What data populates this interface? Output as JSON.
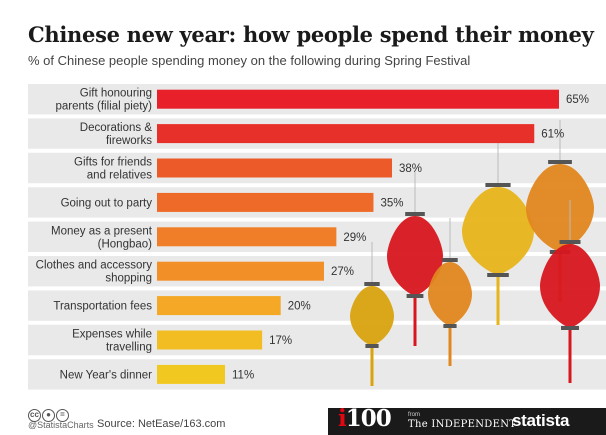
{
  "header": {
    "title": "Chinese new year: how people spend their money",
    "subtitle": "% of Chinese people spending money on the following during Spring Festival"
  },
  "chart_data": {
    "type": "bar",
    "orientation": "horizontal",
    "title": "Chinese new year: how people spend their money",
    "subtitle": "% of Chinese people spending money on the following during Spring Festival",
    "categories": [
      [
        "Gift honouring",
        "parents (filial piety)"
      ],
      [
        "Decorations &",
        "fireworks"
      ],
      [
        "Gifts for friends",
        "and relatives"
      ],
      [
        "Going out to party"
      ],
      [
        "Money as a present",
        "(Hongbao)"
      ],
      [
        "Clothes and accessory",
        "shopping"
      ],
      [
        "Transportation fees"
      ],
      [
        "Expenses while",
        "travelling"
      ],
      [
        "New Year's dinner"
      ]
    ],
    "values": [
      65,
      61,
      38,
      35,
      29,
      27,
      20,
      17,
      11
    ],
    "value_labels": [
      "65%",
      "61%",
      "38%",
      "35%",
      "29%",
      "27%",
      "20%",
      "17%",
      "11%"
    ],
    "bar_colors": [
      "#e8202a",
      "#e8302a",
      "#ec5a29",
      "#ee6a28",
      "#f07d27",
      "#f29027",
      "#f4a825",
      "#f2bd22",
      "#f0c81f"
    ],
    "xlim": [
      0,
      65
    ],
    "row_band_color": "#e9e9e9",
    "grid": false,
    "legend": "none"
  },
  "decor": {
    "lantern_colors": [
      "#d7161e",
      "#e2861f",
      "#e7b41a",
      "#d9a310"
    ]
  },
  "footer": {
    "license_icons": [
      "cc",
      "by",
      "="
    ],
    "handle": "@StatistaCharts",
    "source": "Source: NetEase/163.com",
    "i100_label": "i100",
    "from_label": "from",
    "independent_label": "The INDEPENDENT",
    "statista_label": "statista"
  }
}
